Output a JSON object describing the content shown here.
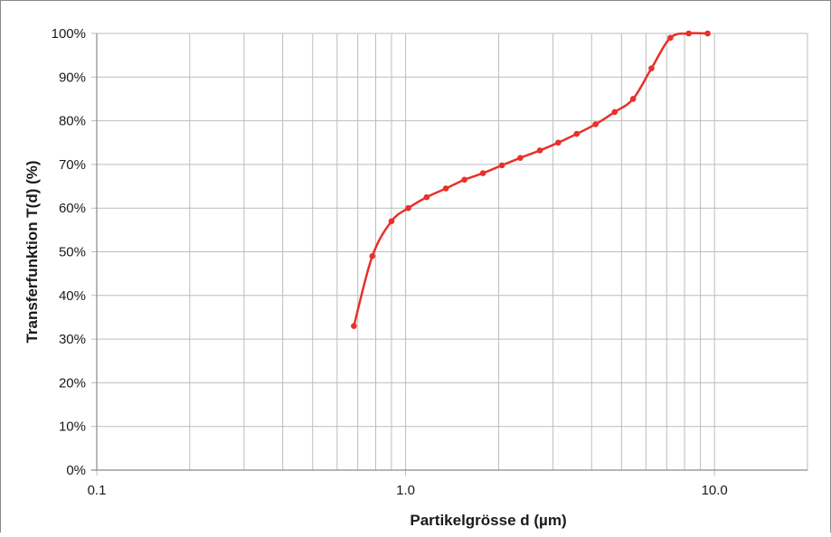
{
  "chart_data": {
    "type": "scatter",
    "title": "",
    "xlabel": "Partikelgrösse d (µm)",
    "ylabel": "Transferfunktion T(d) (%)",
    "xscale": "log",
    "xlim": [
      0.1,
      20
    ],
    "ylim": [
      0,
      100
    ],
    "x_ticks": [
      "0.1",
      "1.0",
      "10.0"
    ],
    "y_ticks": [
      "0%",
      "10%",
      "20%",
      "30%",
      "40%",
      "50%",
      "60%",
      "70%",
      "80%",
      "90%",
      "100%"
    ],
    "grid": true,
    "legend": "none",
    "series": [
      {
        "color": "#e8312a",
        "marker": "circle",
        "line": "smooth",
        "x": [
          0.68,
          0.78,
          0.9,
          1.02,
          1.17,
          1.35,
          1.55,
          1.78,
          2.05,
          2.35,
          2.72,
          3.12,
          3.58,
          4.12,
          4.75,
          5.45,
          6.25,
          7.2,
          8.25,
          9.5
        ],
        "y": [
          33,
          49,
          57,
          60,
          62.5,
          64.5,
          66.5,
          68,
          69.8,
          71.5,
          73.2,
          75,
          77,
          79.2,
          82,
          85,
          92,
          99,
          100,
          100
        ]
      }
    ]
  }
}
